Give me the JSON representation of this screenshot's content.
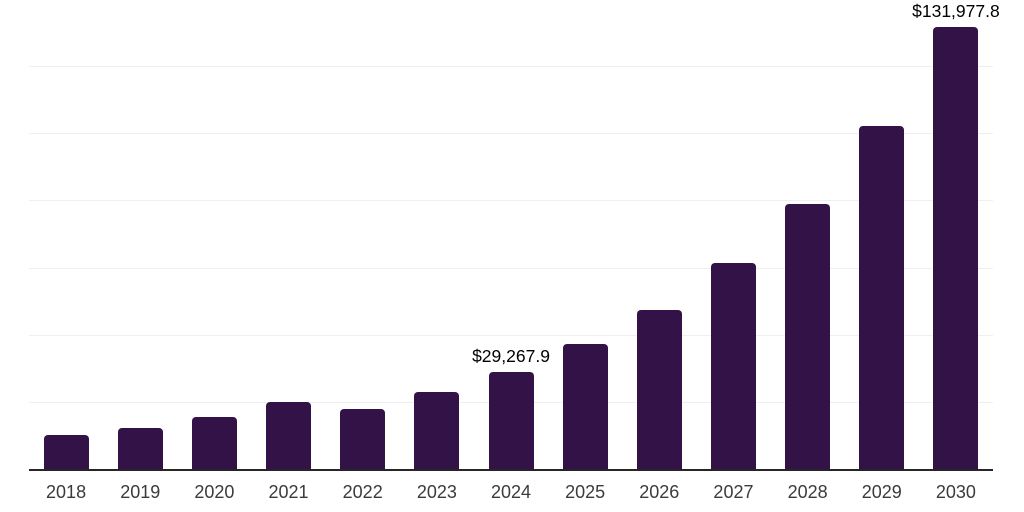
{
  "chart_data": {
    "type": "bar",
    "categories": [
      "2018",
      "2019",
      "2020",
      "2021",
      "2022",
      "2023",
      "2024",
      "2025",
      "2026",
      "2027",
      "2028",
      "2029",
      "2030"
    ],
    "values": [
      10400,
      12600,
      15900,
      20200,
      18300,
      23200,
      29267.9,
      37600,
      47800,
      61600,
      79200,
      102500,
      131977.8
    ],
    "data_labels": {
      "2024": "$29,267.9",
      "2030": "$131,977.8"
    },
    "title": "",
    "xlabel": "",
    "ylabel": "",
    "ylim": [
      0,
      140000
    ],
    "gridline_step": 20000,
    "grid": "horizontal-only",
    "legend": "none",
    "y_axis_labels_visible": false,
    "colors": {
      "bar": "#331247",
      "axis_line": "#262626",
      "gridline": "#f0eef1",
      "x_tick_label": "#3b3b3b",
      "data_label": "#000000",
      "background": "#ffffff"
    }
  }
}
